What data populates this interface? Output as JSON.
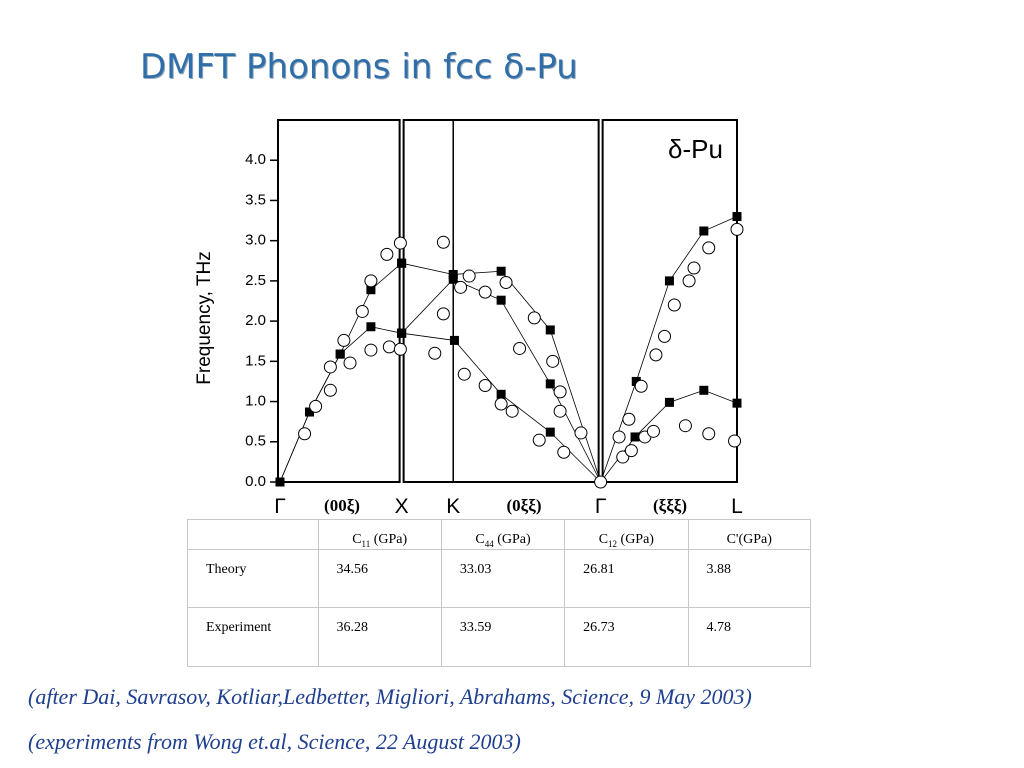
{
  "title": "DMFT Phonons in fcc δ-Pu",
  "chart_data": {
    "type": "scatter",
    "ylabel": "Frequency, THz",
    "annotation": "δ-Pu",
    "direction_labels": [
      "(00ξ)",
      "(0ξξ)",
      "(ξξξ)"
    ],
    "xlim": [
      0,
      3.72
    ],
    "ylim": [
      0,
      4.5
    ],
    "xticks": [
      {
        "value": 0,
        "label": "Γ"
      },
      {
        "value": 0.99,
        "label": "X"
      },
      {
        "value": 1.41,
        "label": "K"
      },
      {
        "value": 2.61,
        "label": "Γ"
      },
      {
        "value": 3.72,
        "label": "L"
      }
    ],
    "yticks": [
      {
        "value": 0,
        "label": "0.0"
      },
      0.5,
      {
        "value": 1,
        "label": "1.0"
      },
      1.5,
      {
        "value": 2,
        "label": "2.0"
      },
      2.5,
      {
        "value": 3,
        "label": "3.0"
      },
      3.5,
      {
        "value": 4,
        "label": "4.0"
      }
    ],
    "series": [
      {
        "marker": "square",
        "line": true,
        "color": "#000000",
        "x": [
          0,
          0.24,
          0.49,
          0.74,
          0.99
        ],
        "values": [
          0,
          0.87,
          1.59,
          2.39,
          2.72
        ]
      },
      {
        "marker": "square",
        "line": true,
        "color": "#000000",
        "x": [
          0,
          0.24,
          0.49,
          0.74,
          0.99
        ],
        "values": [
          0,
          0.87,
          1.59,
          1.93,
          1.85
        ]
      },
      {
        "marker": "square",
        "line": true,
        "color": "#000000",
        "x": [
          0.99,
          1.41,
          1.8,
          2.2,
          2.61
        ],
        "values": [
          2.72,
          2.58,
          2.62,
          1.89,
          0
        ]
      },
      {
        "marker": "square",
        "line": true,
        "color": "#000000",
        "x": [
          0.99,
          1.41,
          1.8,
          2.2,
          2.61
        ],
        "values": [
          1.85,
          2.52,
          2.26,
          1.22,
          0
        ]
      },
      {
        "marker": "square",
        "line": true,
        "color": "#000000",
        "x": [
          0.99,
          1.42,
          1.8,
          2.2,
          2.61
        ],
        "values": [
          1.85,
          1.76,
          1.09,
          0.62,
          0
        ]
      },
      {
        "marker": "square",
        "line": true,
        "color": "#000000",
        "x": [
          2.61,
          2.9,
          3.17,
          3.45,
          3.72
        ],
        "values": [
          0,
          1.25,
          2.5,
          3.12,
          3.3
        ]
      },
      {
        "marker": "square",
        "line": true,
        "color": "#000000",
        "x": [
          2.61,
          2.89,
          3.17,
          3.45,
          3.72
        ],
        "values": [
          0,
          0.56,
          0.99,
          1.14,
          0.98
        ]
      },
      {
        "marker": "circle",
        "line": false,
        "color": "#000000",
        "x": [
          0.2,
          0.29,
          0.41,
          0.41,
          0.52,
          0.57,
          0.67,
          0.74,
          0.74,
          0.87,
          0.89,
          0.98,
          0.98,
          1.33,
          1.33,
          1.26,
          1.47,
          1.5,
          1.54,
          1.67,
          1.67,
          1.84,
          1.8,
          1.89,
          1.95,
          2.07,
          2.11,
          2.22,
          2.28,
          2.28,
          2.31,
          2.45,
          2.61,
          2.76,
          2.79,
          2.84,
          2.86,
          2.94,
          2.97,
          3.04,
          3.06,
          3.13,
          3.21,
          3.33,
          3.37,
          3.3,
          3.49,
          3.49,
          3.72,
          3.7
        ],
        "values": [
          0.6,
          0.94,
          1.14,
          1.43,
          1.76,
          1.48,
          2.12,
          2.5,
          1.64,
          2.83,
          1.68,
          2.97,
          1.65,
          2.98,
          2.09,
          1.6,
          2.42,
          1.34,
          2.56,
          2.36,
          1.2,
          2.48,
          0.97,
          0.88,
          1.66,
          2.04,
          0.52,
          1.5,
          1.12,
          0.88,
          0.37,
          0.61,
          0,
          0.56,
          0.31,
          0.78,
          0.39,
          1.19,
          0.56,
          0.63,
          1.58,
          1.81,
          2.2,
          2.5,
          2.66,
          0.7,
          2.91,
          0.6,
          3.14,
          0.51
        ]
      }
    ]
  },
  "table": {
    "header": [
      {
        "symbol": "C",
        "subscript": "11",
        "unit": "(GPa)"
      },
      {
        "symbol": "C",
        "subscript": "44",
        "unit": "(GPa)"
      },
      {
        "symbol": "C",
        "subscript": "12",
        "unit": "(GPa)"
      },
      {
        "symbol": "C'(GPa)"
      }
    ],
    "rows": [
      [
        "Theory",
        34.56,
        33.03,
        26.81,
        3.88
      ],
      [
        "Experiment",
        36.28,
        33.59,
        26.73,
        4.78
      ]
    ]
  },
  "captions": [
    "(after Dai, Savrasov, Kotliar,Ledbetter, Migliori, Abrahams, Science, 9 May 2003)",
    "(experiments from Wong et.al, Science, 22 August 2003)"
  ]
}
